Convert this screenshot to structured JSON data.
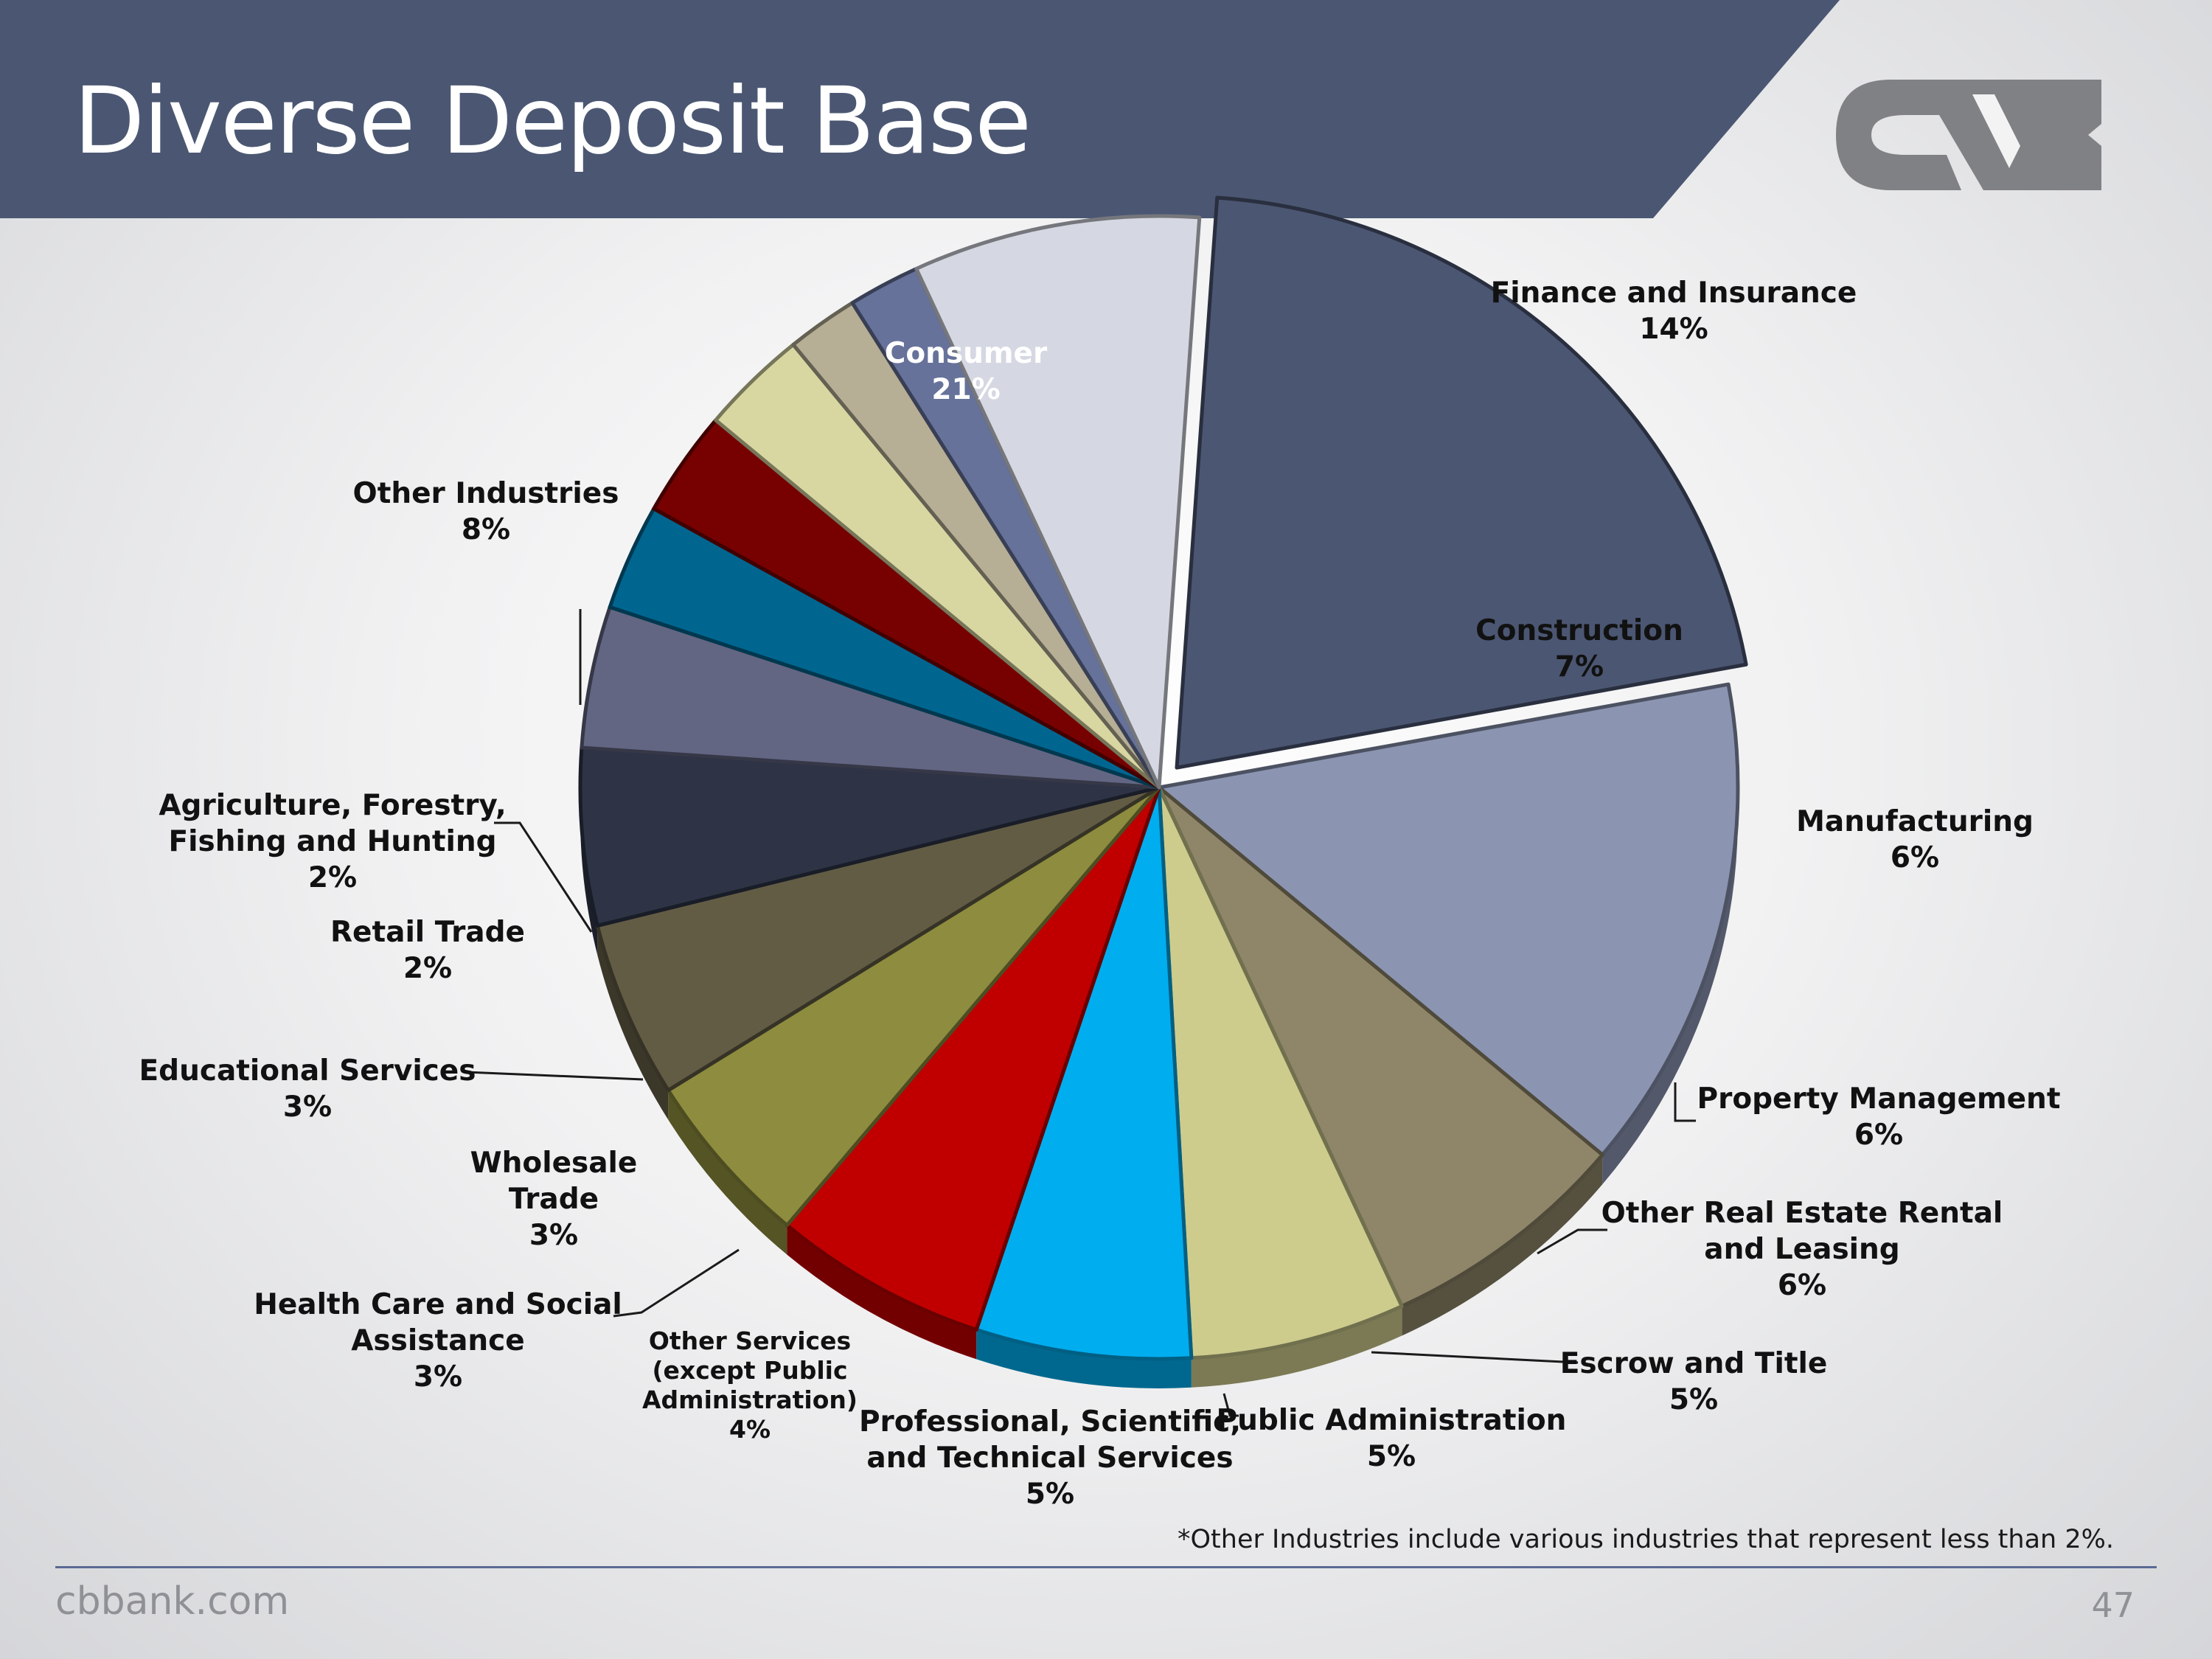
{
  "title": "Diverse Deposit Base",
  "footnote": "*Other Industries include various industries that represent less than 2%.",
  "footer": {
    "url": "cbbank.com",
    "page_number": "47"
  },
  "colors": {
    "header": "#4b5772",
    "logo": "#808184"
  },
  "chart_data": {
    "type": "pie",
    "title": "",
    "unit": "%",
    "slices": [
      {
        "label": "Consumer",
        "value": 21,
        "value_label": "21%",
        "color": "#4b5672"
      },
      {
        "label": "Finance and Insurance",
        "value": 14,
        "value_label": "14%",
        "color": "#8b95b2"
      },
      {
        "label": "Construction",
        "value": 7,
        "value_label": "7%",
        "color": "#8f8669"
      },
      {
        "label": "Manufacturing",
        "value": 6,
        "value_label": "6%",
        "color": "#cdcc8d"
      },
      {
        "label": "Property Management",
        "value": 6,
        "value_label": "6%",
        "color": "#00adef"
      },
      {
        "label": "Other Real Estate Rental and Leasing",
        "value": 6,
        "value_label": "6%",
        "color": "#c00000"
      },
      {
        "label": "Escrow and Title",
        "value": 5,
        "value_label": "5%",
        "color": "#8e8c3e"
      },
      {
        "label": "Public Administration",
        "value": 5,
        "value_label": "5%",
        "color": "#635c45"
      },
      {
        "label": "Professional, Scientific, and Technical Services",
        "value": 5,
        "value_label": "5%",
        "color": "#2e3446"
      },
      {
        "label": "Other Services (except Public Administration)",
        "value": 4,
        "value_label": "4%",
        "color": "#626682"
      },
      {
        "label": "Health Care and Social Assistance",
        "value": 3,
        "value_label": "3%",
        "color": "#006690"
      },
      {
        "label": "Wholesale Trade",
        "value": 3,
        "value_label": "3%",
        "color": "#770000"
      },
      {
        "label": "Educational Services",
        "value": 3,
        "value_label": "3%",
        "color": "#d8d7a2"
      },
      {
        "label": "Retail Trade",
        "value": 2,
        "value_label": "2%",
        "color": "#b6ae95"
      },
      {
        "label": "Agriculture, Forestry, Fishing and Hunting",
        "value": 2,
        "value_label": "2%",
        "color": "#66729a"
      },
      {
        "label": "Other Industries",
        "value": 8,
        "value_label": "8%",
        "color": "#d5d8e2"
      }
    ]
  }
}
